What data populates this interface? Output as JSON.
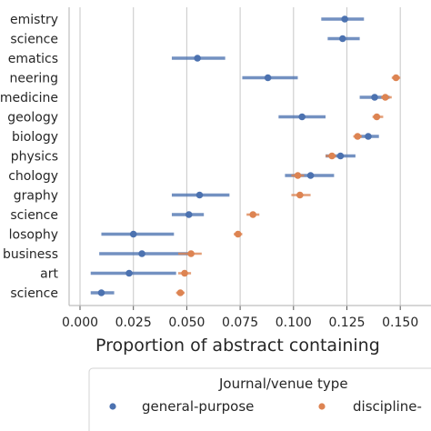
{
  "chart_data": {
    "type": "scatter",
    "xlabel": "Proportion of abstract containing",
    "ylabel": "",
    "xlim": [
      -0.005,
      0.162
    ],
    "x_ticks": [
      "0.000",
      "0.025",
      "0.050",
      "0.075",
      "0.100",
      "0.125",
      "0.150"
    ],
    "x_tick_values": [
      0,
      0.025,
      0.05,
      0.075,
      0.1,
      0.125,
      0.15
    ],
    "grid": "vertical",
    "categories": [
      "emistry",
      "science",
      "ematics",
      "neering",
      "medicine",
      "geology",
      "biology",
      "physics",
      "chology",
      "graphy",
      "science",
      "losophy",
      "business",
      "art",
      "science"
    ],
    "series": [
      {
        "name": "general-purpose",
        "color": "#4c72b0",
        "values": [
          0.124,
          0.123,
          0.055,
          0.088,
          0.138,
          0.104,
          0.135,
          0.122,
          0.108,
          0.056,
          0.051,
          0.025,
          0.029,
          0.023,
          0.01
        ],
        "ci_low": [
          0.113,
          0.116,
          0.043,
          0.076,
          0.131,
          0.093,
          0.13,
          0.115,
          0.096,
          0.043,
          0.043,
          0.01,
          0.009,
          0.005,
          0.005
        ],
        "ci_high": [
          0.133,
          0.131,
          0.068,
          0.102,
          0.145,
          0.115,
          0.14,
          0.129,
          0.119,
          0.07,
          0.058,
          0.044,
          0.053,
          0.045,
          0.016
        ]
      },
      {
        "name": "discipline-",
        "color": "#dd8452",
        "values": [
          null,
          null,
          null,
          0.148,
          0.143,
          0.139,
          0.13,
          0.118,
          0.102,
          0.103,
          0.081,
          0.074,
          0.052,
          0.049,
          0.047
        ],
        "ci_low": [
          null,
          null,
          null,
          0.146,
          0.141,
          0.137,
          0.128,
          0.115,
          0.099,
          0.099,
          0.078,
          0.072,
          0.046,
          0.046,
          0.045
        ],
        "ci_high": [
          null,
          null,
          null,
          0.15,
          0.146,
          0.142,
          0.132,
          0.12,
          0.105,
          0.108,
          0.084,
          0.076,
          0.057,
          0.052,
          0.049
        ]
      }
    ],
    "legend": {
      "title": "Journal/venue type",
      "position": "bottom",
      "entries": [
        "general-purpose",
        "discipline-"
      ]
    }
  }
}
